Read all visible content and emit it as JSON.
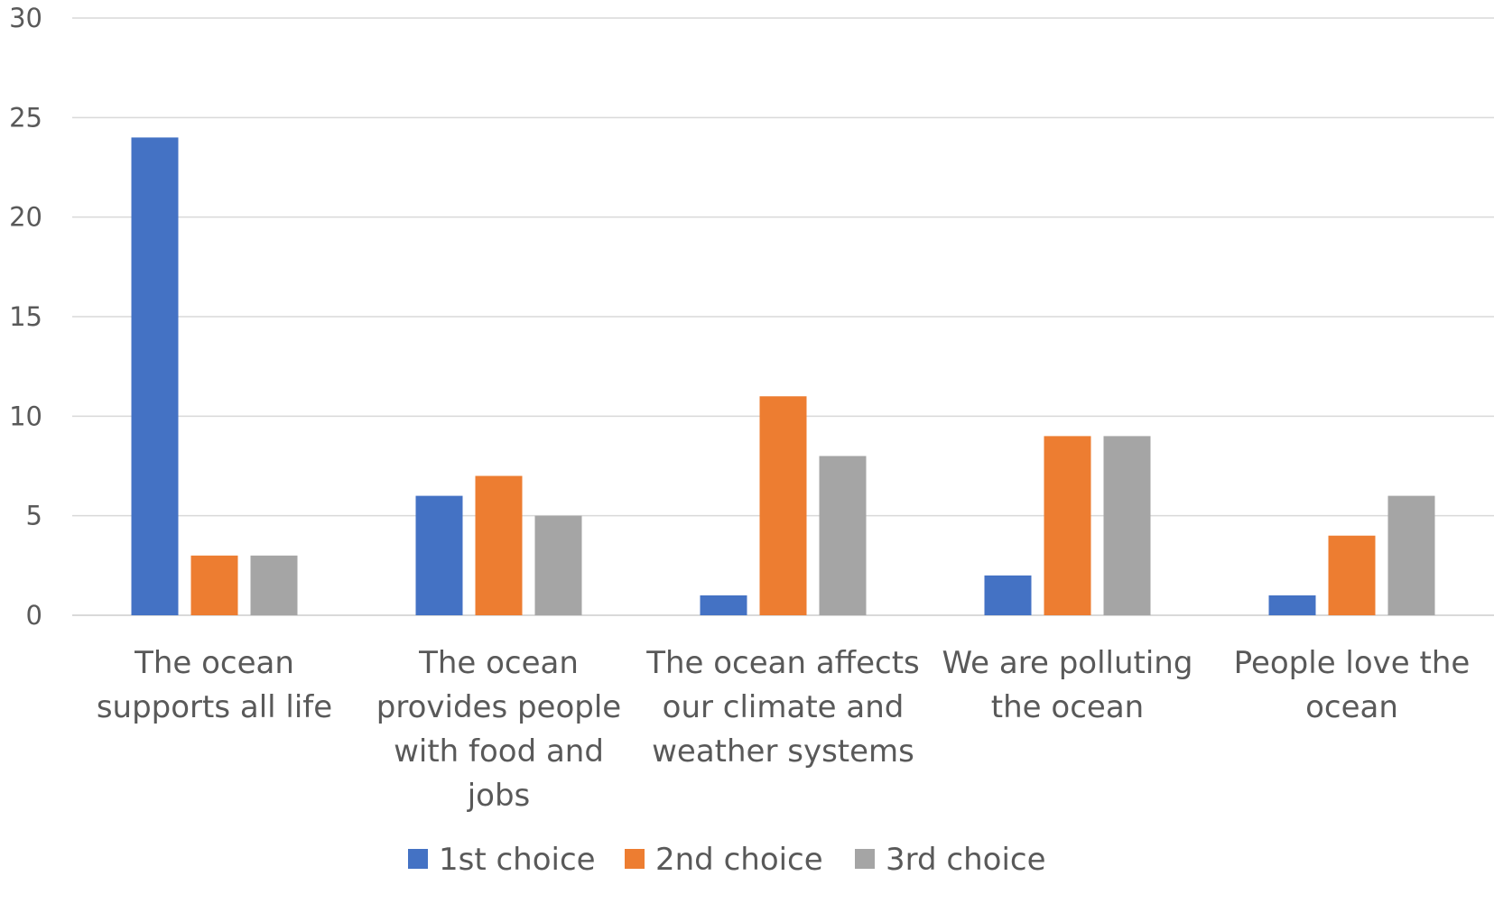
{
  "chart_data": {
    "type": "bar",
    "categories": [
      "The ocean supports all life",
      "The ocean provides people with food and jobs",
      "The ocean affects our climate and weather systems",
      "We are polluting the ocean",
      "People love the ocean"
    ],
    "category_lines": [
      [
        "The ocean",
        "supports all life"
      ],
      [
        "The ocean",
        "provides people",
        "with food and",
        "jobs"
      ],
      [
        "The ocean affects",
        "our climate and",
        "weather systems"
      ],
      [
        "We are polluting",
        "the ocean"
      ],
      [
        "People love the",
        "ocean"
      ]
    ],
    "series": [
      {
        "name": "1st choice",
        "color": "#4472C4",
        "values": [
          24,
          6,
          1,
          2,
          1
        ]
      },
      {
        "name": "2nd choice",
        "color": "#ED7D31",
        "values": [
          3,
          7,
          11,
          9,
          4
        ]
      },
      {
        "name": "3rd choice",
        "color": "#A5A5A5",
        "values": [
          3,
          5,
          8,
          9,
          6
        ]
      }
    ],
    "yticks": [
      0,
      5,
      10,
      15,
      20,
      25,
      30
    ],
    "ylim": [
      0,
      30
    ],
    "grid": true,
    "legend_position": "bottom",
    "title": "",
    "xlabel": "",
    "ylabel": ""
  }
}
